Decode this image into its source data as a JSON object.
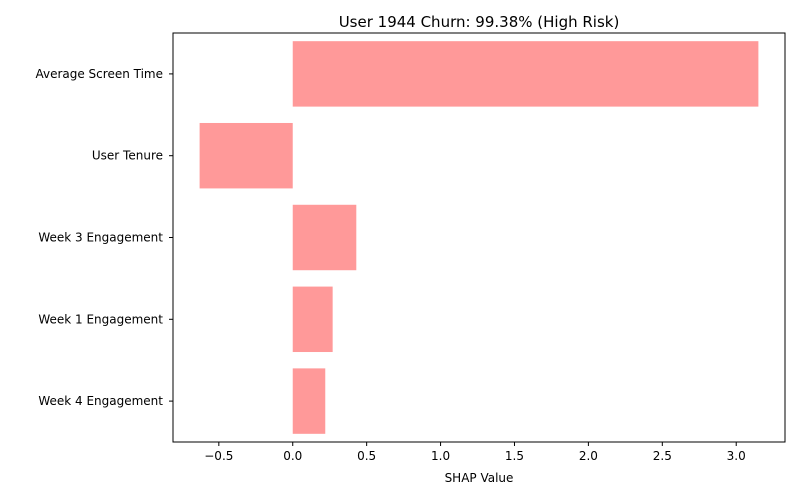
{
  "chart_data": {
    "type": "bar",
    "orientation": "horizontal",
    "title": "User 1944 Churn: 99.38% (High Risk)",
    "xlabel": "SHAP Value",
    "ylabel": "",
    "categories": [
      "Average Screen Time",
      "User Tenure",
      "Week 3 Engagement",
      "Week 1 Engagement",
      "Week 4 Engagement"
    ],
    "values": [
      3.15,
      -0.63,
      0.43,
      0.27,
      0.22
    ],
    "xlim": [
      -0.81,
      3.33
    ],
    "xticks": [
      -0.5,
      0.0,
      0.5,
      1.0,
      1.5,
      2.0,
      2.5,
      3.0
    ],
    "xtick_labels": [
      "−0.5",
      "0.0",
      "0.5",
      "1.0",
      "1.5",
      "2.0",
      "2.5",
      "3.0"
    ],
    "bar_color": "#ff9999",
    "grid": false,
    "legend": "none"
  }
}
